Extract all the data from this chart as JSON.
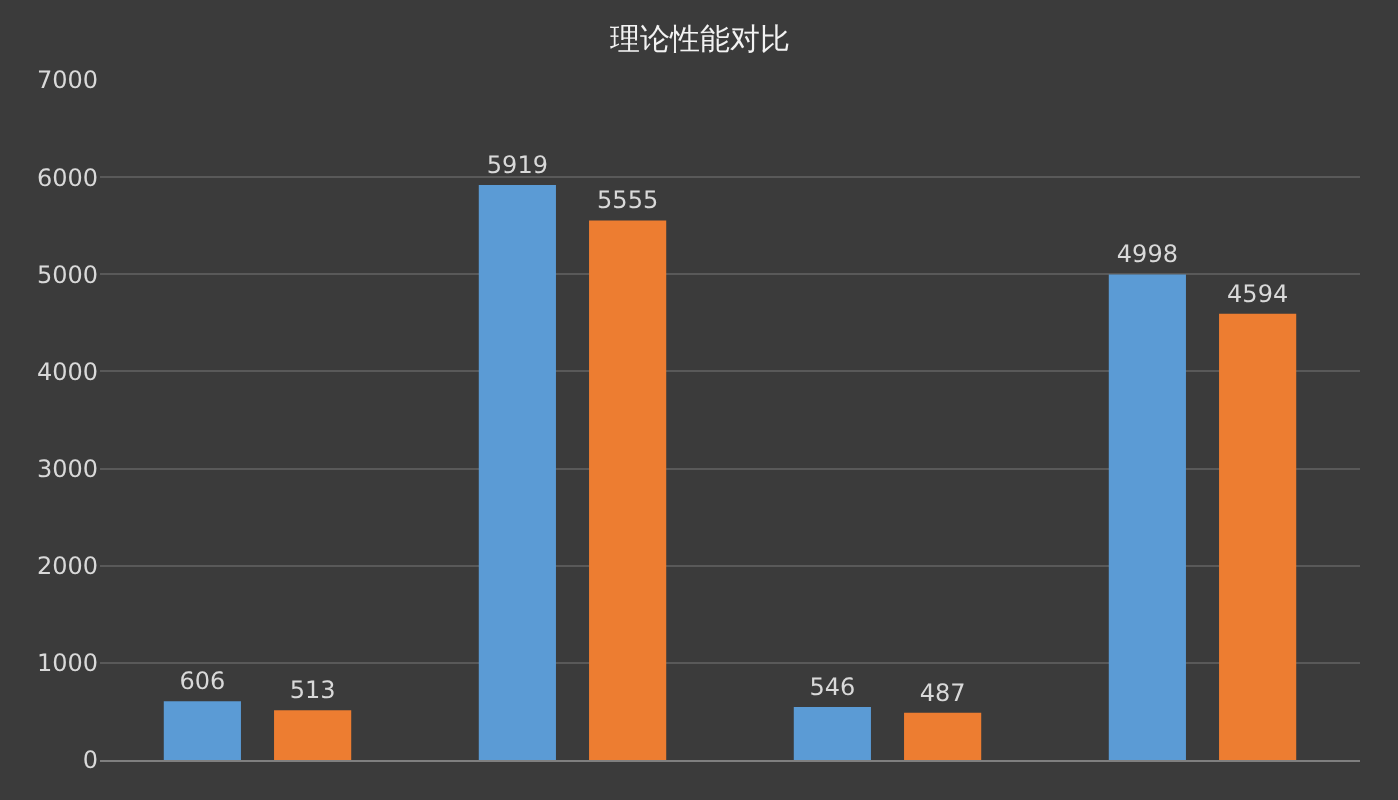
{
  "chart_data": {
    "type": "bar",
    "title": "理论性能对比",
    "categories": [
      null,
      null,
      null,
      null
    ],
    "series": [
      {
        "color": "#5b9bd5",
        "values": [
          606,
          5919,
          546,
          4998
        ]
      },
      {
        "color": "#ed7d31",
        "values": [
          513,
          5555,
          487,
          4594
        ]
      }
    ],
    "ylim": [
      0,
      7000
    ],
    "yticks": [
      0,
      1000,
      2000,
      3000,
      4000,
      5000,
      6000,
      7000
    ],
    "grid": "y",
    "data_labels": true,
    "tick_labels": "y",
    "legend": false
  }
}
